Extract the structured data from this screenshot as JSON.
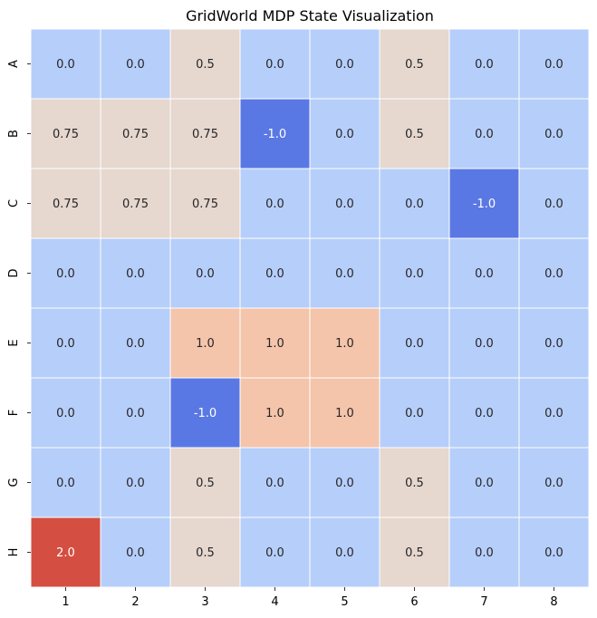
{
  "chart_data": {
    "type": "heatmap",
    "title": "GridWorld MDP State Visualization",
    "xlabel": "",
    "ylabel": "",
    "x_categories": [
      "1",
      "2",
      "3",
      "4",
      "5",
      "6",
      "7",
      "8"
    ],
    "y_categories": [
      "A",
      "B",
      "C",
      "D",
      "E",
      "F",
      "G",
      "H"
    ],
    "values": [
      [
        0.0,
        0.0,
        0.5,
        0.0,
        0.0,
        0.5,
        0.0,
        0.0
      ],
      [
        0.75,
        0.75,
        0.75,
        -1.0,
        0.0,
        0.5,
        0.0,
        0.0
      ],
      [
        0.75,
        0.75,
        0.75,
        0.0,
        0.0,
        0.0,
        -1.0,
        0.0
      ],
      [
        0.0,
        0.0,
        0.0,
        0.0,
        0.0,
        0.0,
        0.0,
        0.0
      ],
      [
        0.0,
        0.0,
        1.0,
        1.0,
        1.0,
        0.0,
        0.0,
        0.0
      ],
      [
        0.0,
        0.0,
        -1.0,
        1.0,
        1.0,
        0.0,
        0.0,
        0.0
      ],
      [
        0.0,
        0.0,
        0.5,
        0.0,
        0.0,
        0.5,
        0.0,
        0.0
      ],
      [
        2.0,
        0.0,
        0.5,
        0.0,
        0.0,
        0.5,
        0.0,
        0.0
      ]
    ],
    "value_labels": [
      [
        "0.0",
        "0.0",
        "0.5",
        "0.0",
        "0.0",
        "0.5",
        "0.0",
        "0.0"
      ],
      [
        "0.75",
        "0.75",
        "0.75",
        "-1.0",
        "0.0",
        "0.5",
        "0.0",
        "0.0"
      ],
      [
        "0.75",
        "0.75",
        "0.75",
        "0.0",
        "0.0",
        "0.0",
        "-1.0",
        "0.0"
      ],
      [
        "0.0",
        "0.0",
        "0.0",
        "0.0",
        "0.0",
        "0.0",
        "0.0",
        "0.0"
      ],
      [
        "0.0",
        "0.0",
        "1.0",
        "1.0",
        "1.0",
        "0.0",
        "0.0",
        "0.0"
      ],
      [
        "0.0",
        "0.0",
        "-1.0",
        "1.0",
        "1.0",
        "0.0",
        "0.0",
        "0.0"
      ],
      [
        "0.0",
        "0.0",
        "0.5",
        "0.0",
        "0.0",
        "0.5",
        "0.0",
        "0.0"
      ],
      [
        "2.0",
        "0.0",
        "0.5",
        "0.0",
        "0.0",
        "0.5",
        "0.0",
        "0.0"
      ]
    ],
    "colormap": "coolwarm",
    "value_range": [
      -1.0,
      2.0
    ],
    "grid": true,
    "legend": "none",
    "colors": {
      "-1.0": "#5a78e4",
      "0.0": "#b6cefa",
      "0.5": "#e6d7cf",
      "0.75": "#e6d7cf",
      "1.0": "#f4c4ab",
      "2.0": "#d44e41"
    },
    "label_colors": {
      "light": "#262626",
      "dark": "#ffffff"
    },
    "gridline_color": "#ffffff"
  }
}
